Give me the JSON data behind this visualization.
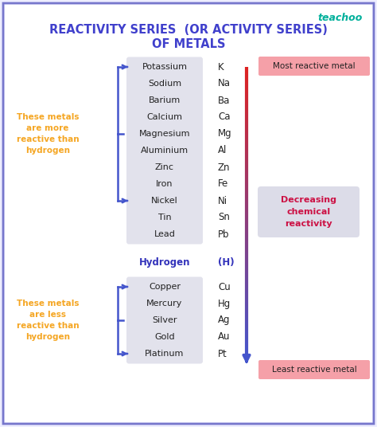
{
  "title_line1": "REACTIVITY SERIES  (OR ACTIVITY SERIES)",
  "title_line2": "OF METALS",
  "title_color": "#4040cc",
  "background_color": "#eeeeff",
  "teachoo_color": "#00b09b",
  "metals": [
    {
      "name": "Potassium",
      "symbol": "K"
    },
    {
      "name": "Sodium",
      "symbol": "Na"
    },
    {
      "name": "Barium",
      "symbol": "Ba"
    },
    {
      "name": "Calcium",
      "symbol": "Ca"
    },
    {
      "name": "Magnesium",
      "symbol": "Mg"
    },
    {
      "name": "Aluminium",
      "symbol": "Al"
    },
    {
      "name": "Zinc",
      "symbol": "Zn"
    },
    {
      "name": "Iron",
      "symbol": "Fe"
    },
    {
      "name": "Nickel",
      "symbol": "Ni"
    },
    {
      "name": "Tin",
      "symbol": "Sn"
    },
    {
      "name": "Lead",
      "symbol": "Pb"
    }
  ],
  "hydrogen": {
    "name": "Hydrogen",
    "symbol": "(H)"
  },
  "below_metals": [
    {
      "name": "Copper",
      "symbol": "Cu"
    },
    {
      "name": "Mercury",
      "symbol": "Hg"
    },
    {
      "name": "Silver",
      "symbol": "Ag"
    },
    {
      "name": "Gold",
      "symbol": "Au"
    },
    {
      "name": "Platinum",
      "symbol": "Pt"
    }
  ],
  "box_color": "#e2e2ec",
  "box_edge_color": "#c8c8d8",
  "text_color": "#222222",
  "hydrogen_color": "#3333bb",
  "orange_color": "#f5a623",
  "arrow_top_color": "#dd2222",
  "arrow_bottom_color": "#4455cc",
  "bracket_color": "#4455cc",
  "most_reactive_bg": "#f5a0a8",
  "least_reactive_bg": "#f5a0a8",
  "decreasing_bg": "#dcdce8",
  "decreasing_text": "#cc1144"
}
